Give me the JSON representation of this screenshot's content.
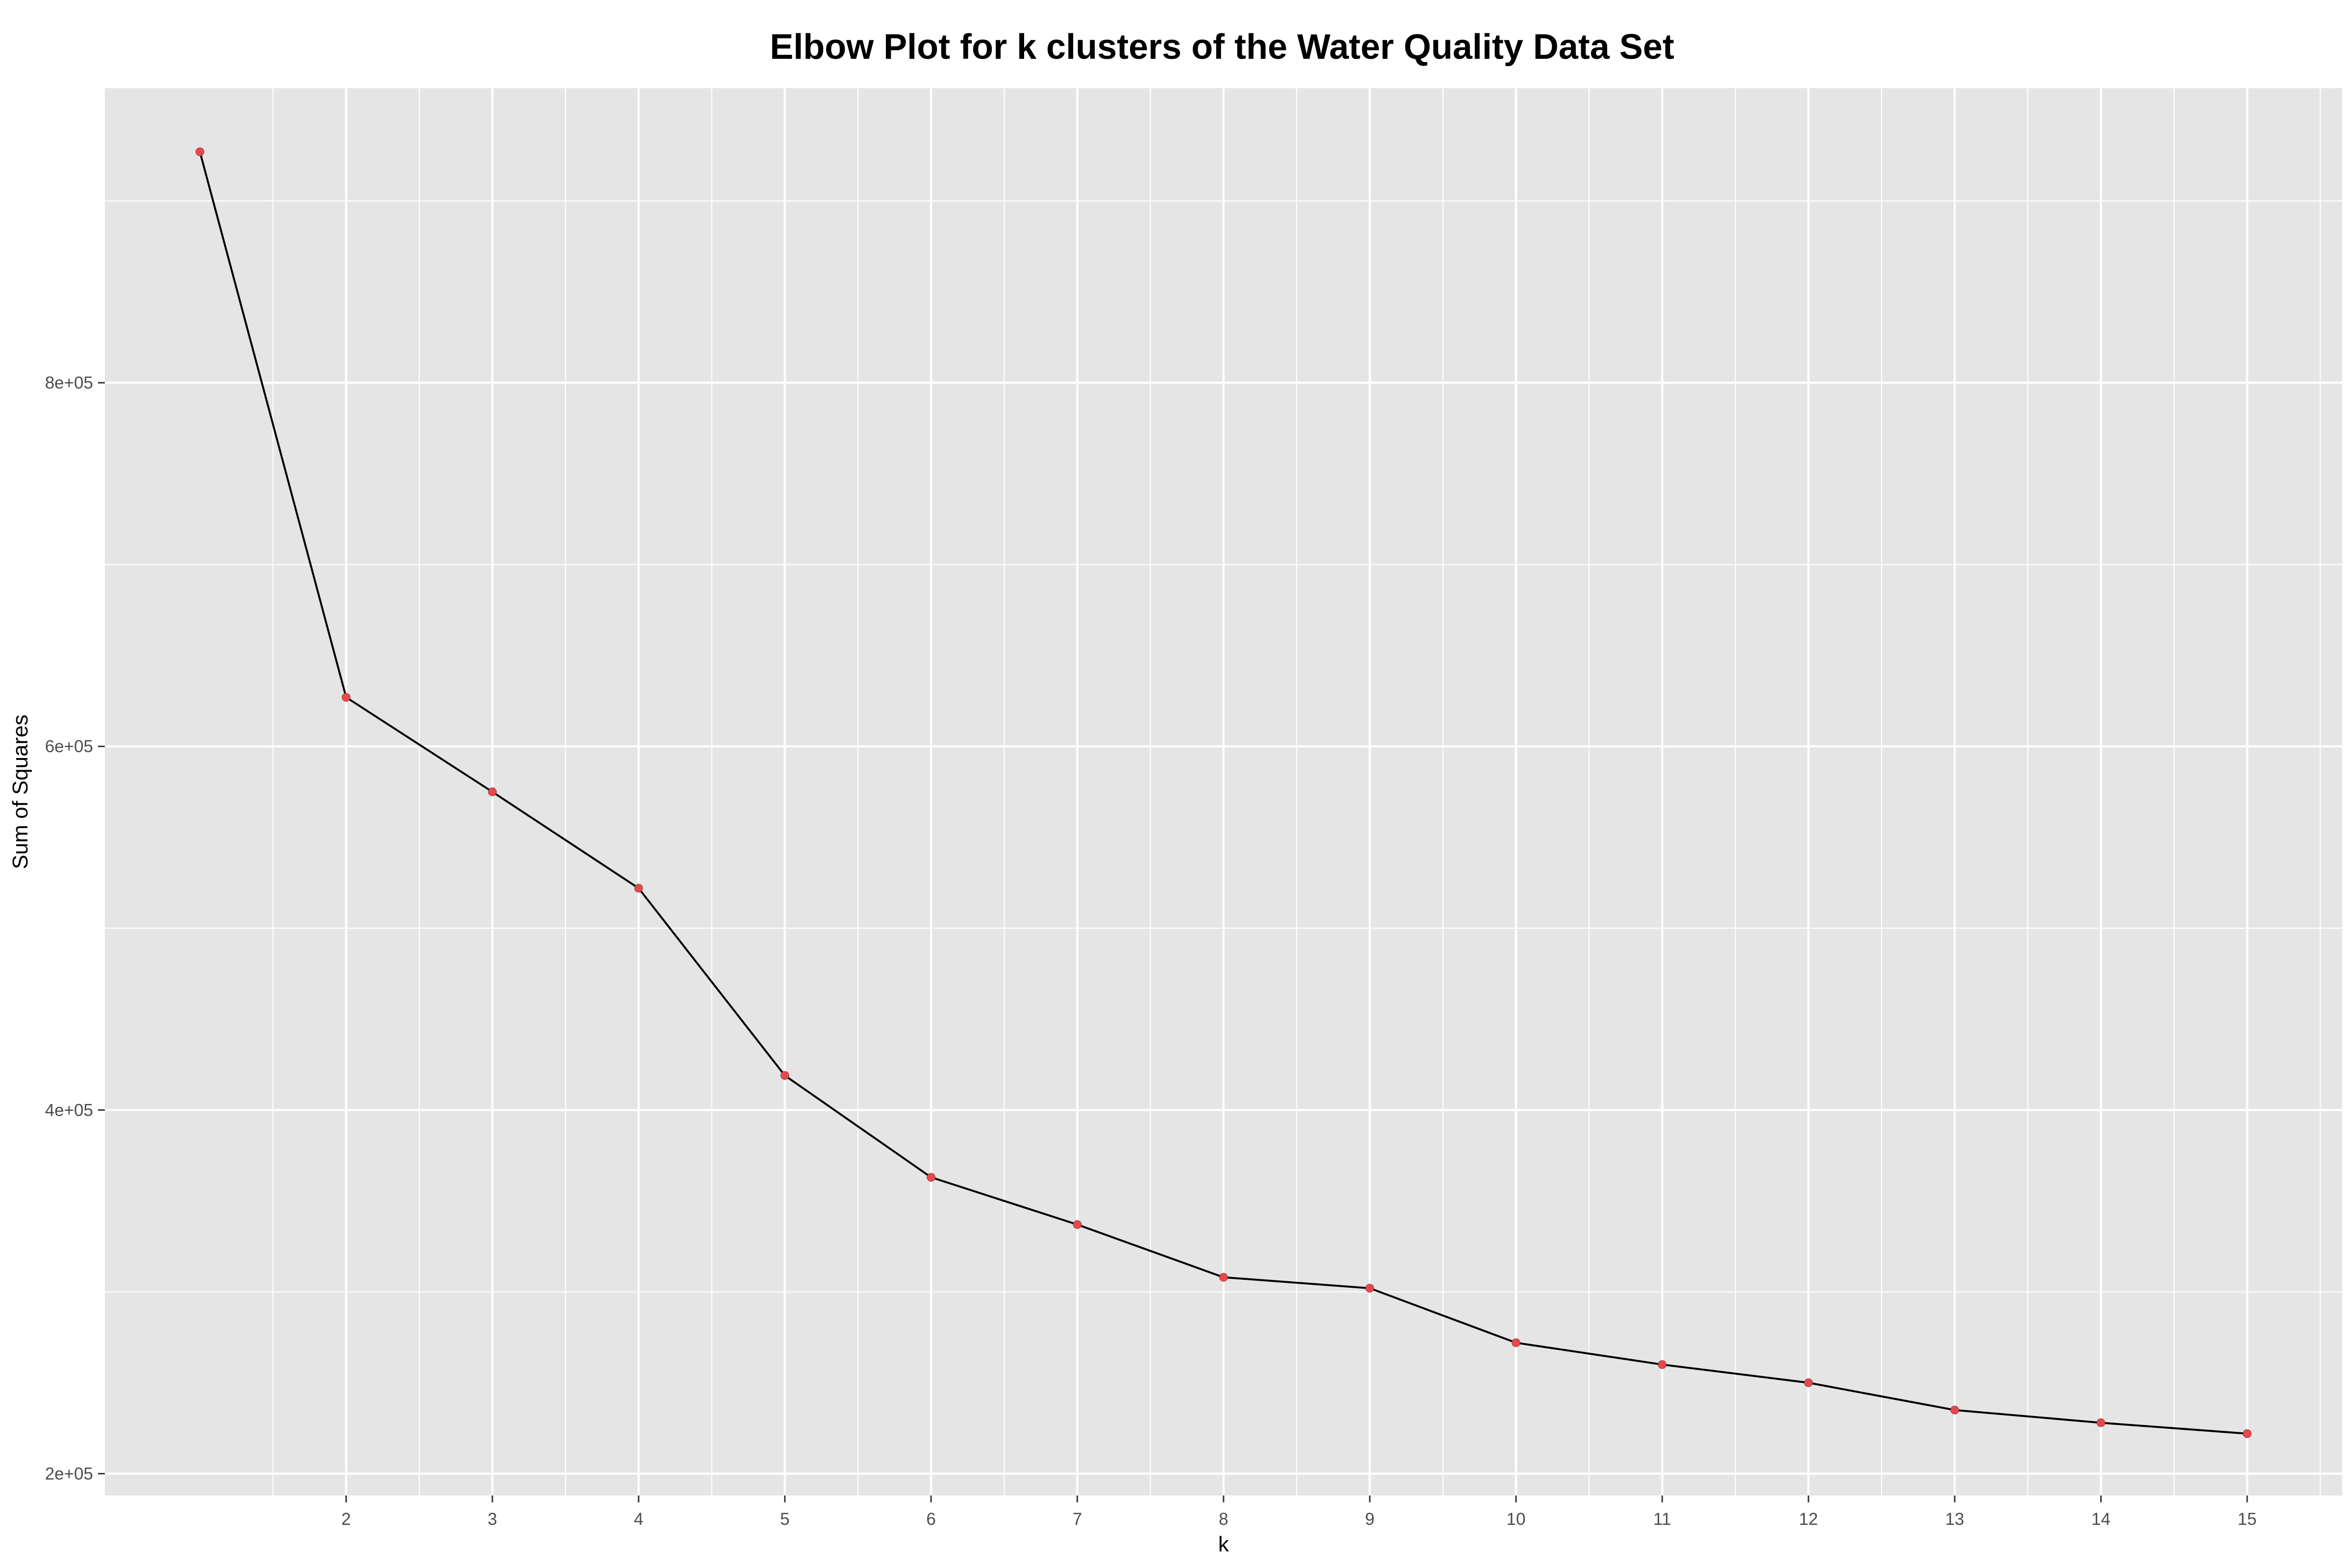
{
  "chart_data": {
    "type": "line",
    "title": "Elbow Plot for k clusters of the Water Quality Data Set",
    "xlabel": "k",
    "ylabel": "Sum of Squares",
    "x": [
      1,
      2,
      3,
      4,
      5,
      6,
      7,
      8,
      9,
      10,
      11,
      12,
      13,
      14,
      15
    ],
    "series": [
      {
        "values": [
          927000,
          627000,
          575000,
          522000,
          419000,
          363000,
          337000,
          308000,
          302000,
          272000,
          260000,
          250000,
          235000,
          228000,
          222000
        ]
      }
    ],
    "x_tick_labels": [
      "2",
      "3",
      "4",
      "5",
      "6",
      "7",
      "8",
      "9",
      "10",
      "11",
      "12",
      "13",
      "14",
      "15"
    ],
    "x_ticks": [
      2,
      3,
      4,
      5,
      6,
      7,
      8,
      9,
      10,
      11,
      12,
      13,
      14,
      15
    ],
    "y_tick_labels": [
      "2e+05",
      "4e+05",
      "6e+05",
      "8e+05"
    ],
    "y_ticks": [
      200000,
      400000,
      600000,
      800000
    ],
    "xlim": [
      0.35,
      15.65
    ],
    "ylim": [
      188000,
      962000
    ],
    "grid": true,
    "colors": {
      "panel_background": "#e5e5e5",
      "grid_line": "#ffffff",
      "series_line": "#000000",
      "point_fill": "#e8484b",
      "point_stroke": "#000000",
      "tick_text": "#4d4d4d",
      "tick_mark": "#333333"
    }
  }
}
